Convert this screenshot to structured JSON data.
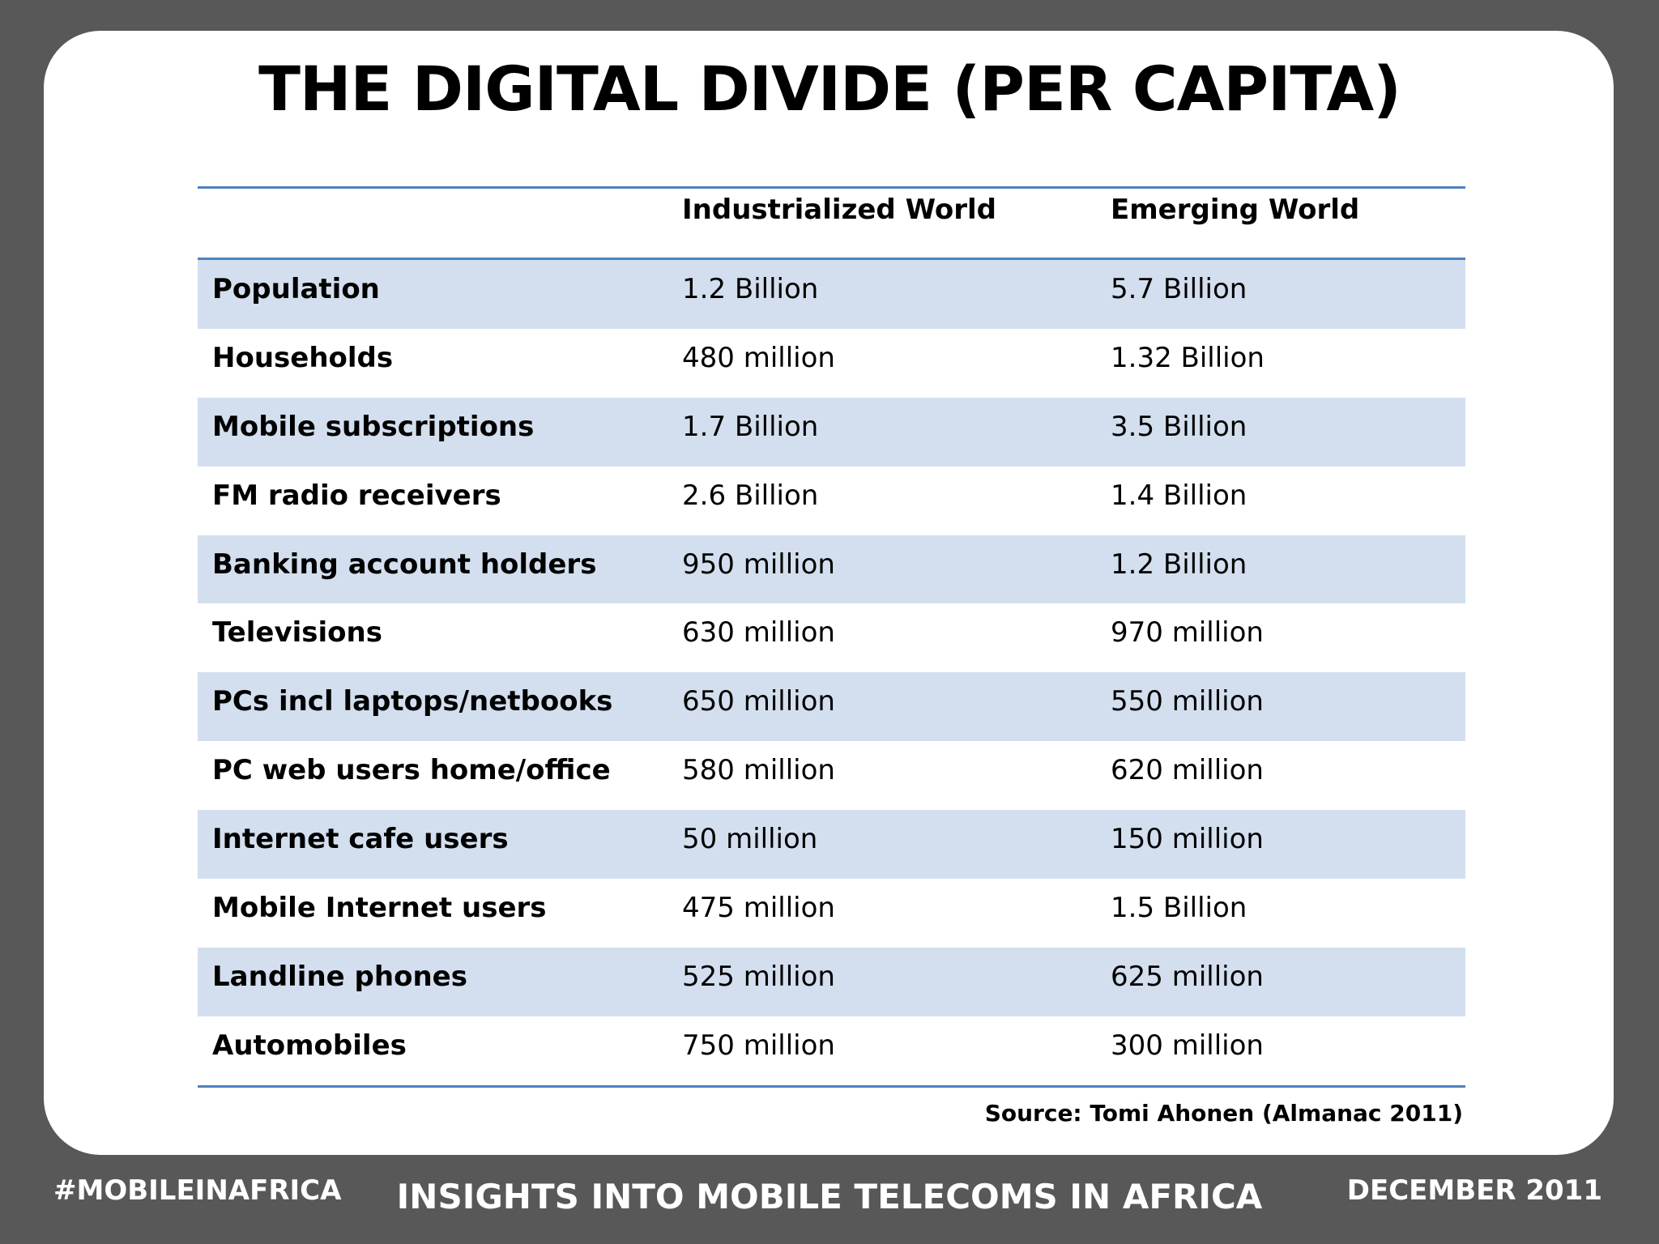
{
  "slide": {
    "title": "THE DIGITAL DIVIDE (PER CAPITA)",
    "source": "Source: Tomi Ahonen (Almanac 2011)"
  },
  "table": {
    "headers": [
      "",
      "Industrialized World",
      "Emerging World"
    ],
    "rows": [
      {
        "label": "Population",
        "industrialized": "1.2 Billion",
        "emerging": "5.7 Billion"
      },
      {
        "label": "Households",
        "industrialized": "480 million",
        "emerging": "1.32 Billion"
      },
      {
        "label": "Mobile subscriptions",
        "industrialized": "1.7 Billion",
        "emerging": "3.5 Billion"
      },
      {
        "label": "FM radio receivers",
        "industrialized": "2.6 Billion",
        "emerging": "1.4 Billion"
      },
      {
        "label": "Banking account holders",
        "industrialized": "950 million",
        "emerging": "1.2 Billion"
      },
      {
        "label": "Televisions",
        "industrialized": "630 million",
        "emerging": "970 million"
      },
      {
        "label": "PCs incl laptops/netbooks",
        "industrialized": "650 million",
        "emerging": "550 million"
      },
      {
        "label": "PC web users home/office",
        "industrialized": "580 million",
        "emerging": "620 million"
      },
      {
        "label": "Internet cafe users",
        "industrialized": "50 million",
        "emerging": "150 million"
      },
      {
        "label": "Mobile Internet users",
        "industrialized": "475 million",
        "emerging": "1.5 Billion"
      },
      {
        "label": "Landline phones",
        "industrialized": "525 million",
        "emerging": "625 million"
      },
      {
        "label": "Automobiles",
        "industrialized": "750 million",
        "emerging": "300 million"
      }
    ]
  },
  "footer": {
    "left": "#MOBILEINAFRICA",
    "center": "INSIGHTS INTO MOBILE TELECOMS IN AFRICA",
    "right": "DECEMBER 2011"
  },
  "colors": {
    "background": "#585858",
    "card": "#ffffff",
    "rule": "#4f81bd",
    "shaded_row": "#d3dfee"
  }
}
